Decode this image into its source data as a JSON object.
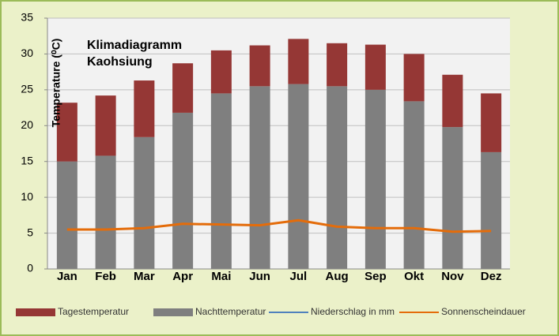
{
  "chart_data": {
    "type": "stacked_bar_line",
    "title": [
      "Klimadiagramm",
      "Kaohsiung"
    ],
    "y_label": "Temperature (⁰C)",
    "categories": [
      "Jan",
      "Feb",
      "Mar",
      "Apr",
      "Mai",
      "Jun",
      "Jul",
      "Aug",
      "Sep",
      "Okt",
      "Nov",
      "Dez"
    ],
    "series": [
      {
        "name": "Tagestemperatur",
        "color": "#953735",
        "kind": "bar",
        "values": [
          8.2,
          8.4,
          7.9,
          6.9,
          6.0,
          5.7,
          6.3,
          6.0,
          6.3,
          6.6,
          7.3,
          8.2
        ]
      },
      {
        "name": "Nachttemperatur",
        "color": "#7f7f7f",
        "kind": "bar",
        "values": [
          15.0,
          15.8,
          18.4,
          21.8,
          24.5,
          25.5,
          25.8,
          25.5,
          25.0,
          23.4,
          19.8,
          16.3
        ]
      },
      {
        "name": "Niederschlag in mm",
        "color": "#4f81bd",
        "kind": "line",
        "values": [
          null,
          null,
          null,
          null,
          null,
          null,
          null,
          null,
          null,
          null,
          null,
          null
        ]
      },
      {
        "name": "Sonnenscheindauer",
        "color": "#e46c0a",
        "kind": "line",
        "values": [
          5.5,
          5.5,
          5.7,
          6.3,
          6.2,
          6.1,
          6.8,
          5.9,
          5.7,
          5.7,
          5.2,
          5.3
        ]
      }
    ],
    "stack_order": [
      1,
      0
    ],
    "ylim": [
      0,
      35
    ],
    "yticks": [
      0,
      5,
      10,
      15,
      20,
      25,
      30,
      35
    ],
    "grid": true,
    "legend": "bottom"
  }
}
